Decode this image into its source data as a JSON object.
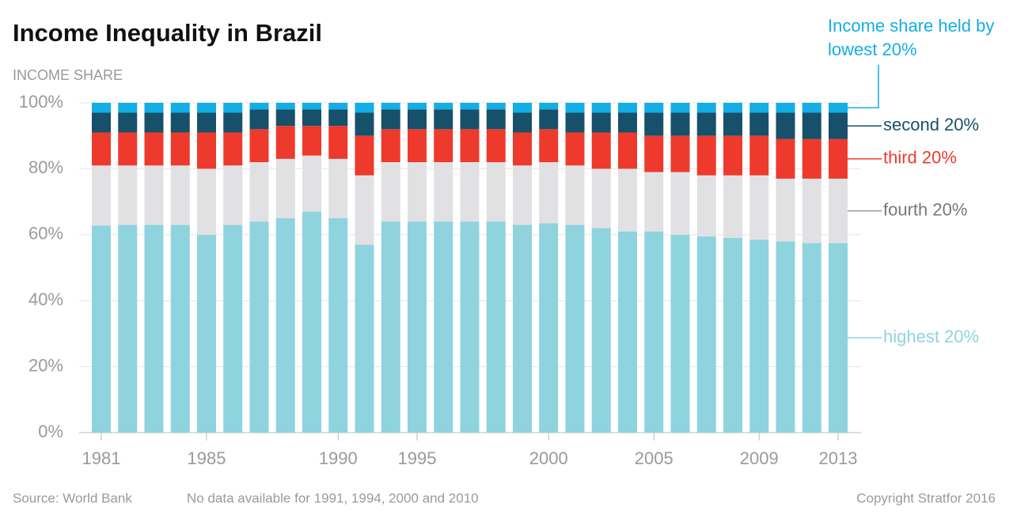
{
  "chart_data": {
    "type": "stacked_bar",
    "title": "Income Inequality in Brazil",
    "y_label": "INCOME SHARE",
    "source": "Source: World Bank",
    "note": "No data available for 1991, 1994, 2000 and 2010",
    "copyright": "Copyright Stratfor 2016",
    "categories": [
      "1981",
      null,
      null,
      null,
      "1985",
      null,
      null,
      null,
      null,
      "1990",
      null,
      null,
      "1995",
      null,
      null,
      null,
      null,
      "2000",
      null,
      null,
      null,
      "2005",
      null,
      null,
      null,
      "2009",
      null,
      null,
      "2013"
    ],
    "series": [
      {
        "name": "highest 20%",
        "color": "#8fd3de",
        "values": [
          62.8,
          63,
          63,
          63,
          60,
          63,
          64,
          65,
          67,
          65,
          57,
          64,
          64,
          64,
          64,
          64,
          63,
          63.5,
          63,
          62,
          61,
          61,
          60,
          59.5,
          59,
          58.5,
          58,
          57.5,
          57.5
        ]
      },
      {
        "name": "fourth 20%",
        "color": "#e1e1e3",
        "values": [
          18.2,
          18,
          18,
          18,
          20,
          18,
          18,
          18,
          17,
          18,
          21,
          18,
          18,
          18,
          18,
          18,
          18,
          18.5,
          18,
          18,
          19,
          18,
          19,
          18.5,
          19,
          19.5,
          19,
          19.5,
          19.5
        ]
      },
      {
        "name": "third 20%",
        "color": "#ee3a2c",
        "values": [
          10,
          10,
          10,
          10,
          11,
          10,
          10,
          10,
          9,
          10,
          12,
          10,
          10,
          10,
          10,
          10,
          10,
          10,
          10,
          11,
          11,
          11,
          11,
          12,
          12,
          12,
          12,
          12,
          12
        ]
      },
      {
        "name": "second 20%",
        "color": "#17506a",
        "values": [
          6,
          6,
          6,
          6,
          6,
          6,
          6,
          5,
          5,
          5,
          7,
          6,
          6,
          6,
          6,
          6,
          6,
          6,
          6,
          6,
          6,
          7,
          7,
          7,
          7,
          7,
          8,
          8,
          8
        ]
      },
      {
        "name": "Income share held by lowest 20%",
        "color": "#12aee5",
        "values": [
          3,
          3,
          3,
          3,
          3,
          3,
          2,
          2,
          2,
          2,
          3,
          2,
          2,
          2,
          2,
          2,
          3,
          2,
          3,
          3,
          3,
          3,
          3,
          3,
          3,
          3,
          3,
          3,
          3
        ]
      }
    ],
    "ylim": [
      0,
      100
    ],
    "yticks": [
      {
        "value": 0,
        "label": "0%"
      },
      {
        "value": 20,
        "label": "20%"
      },
      {
        "value": 40,
        "label": "40%"
      },
      {
        "value": 60,
        "label": "60%"
      },
      {
        "value": 80,
        "label": "80%"
      },
      {
        "value": 100,
        "label": "100%"
      }
    ],
    "grid": true
  }
}
